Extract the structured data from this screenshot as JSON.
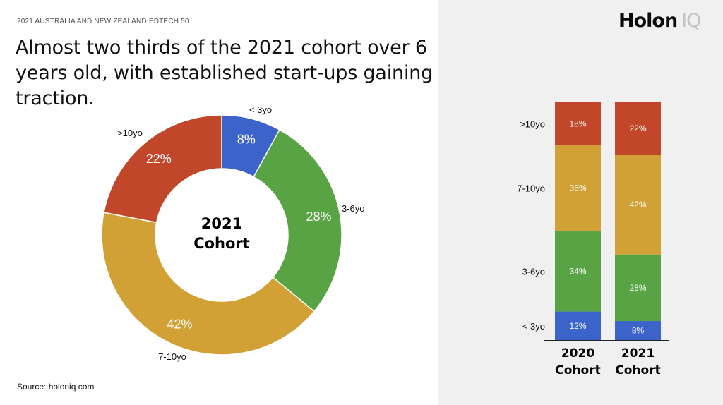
{
  "header": {
    "supertitle": "2021 AUSTRALIA AND NEW ZEALAND EDTECH 50",
    "headline": "Almost two thirds of the 2021 cohort over 6 years old, with established start-ups gaining traction.",
    "logo_word": "Holon",
    "logo_suffix": "IQ"
  },
  "footer": {
    "source": "Source: holoniq.com"
  },
  "colors": {
    "lt3": "#3b63c9",
    "3to6": "#58a444",
    "7to10": "#d2a136",
    "gt10": "#c2472a",
    "panel": "#f0f0f0"
  },
  "chart_data": [
    {
      "type": "pie",
      "variant": "donut",
      "center_label_line1": "2021",
      "center_label_line2": "Cohort",
      "slices": [
        {
          "label": "< 3yo",
          "value": 8,
          "value_label": "8%",
          "color": "#3b63c9"
        },
        {
          "label": "3-6yo",
          "value": 28,
          "value_label": "28%",
          "color": "#58a444"
        },
        {
          "label": "7-10yo",
          "value": 42,
          "value_label": "42%",
          "color": "#d2a136"
        },
        {
          "label": ">10yo",
          "value": 22,
          "value_label": "22%",
          "color": "#c2472a"
        }
      ]
    },
    {
      "type": "bar",
      "stacked": true,
      "normalized": true,
      "categories": [
        "2020 Cohort",
        "2021 Cohort"
      ],
      "category_lines": [
        [
          "2020",
          "Cohort"
        ],
        [
          "2021",
          "Cohort"
        ]
      ],
      "ylim": [
        0,
        100
      ],
      "series": [
        {
          "name": "< 3yo",
          "values": [
            12,
            8
          ],
          "value_labels": [
            "12%",
            "8%"
          ],
          "color": "#3b63c9"
        },
        {
          "name": "3-6yo",
          "values": [
            34,
            28
          ],
          "value_labels": [
            "34%",
            "28%"
          ],
          "color": "#58a444"
        },
        {
          "name": "7-10yo",
          "values": [
            36,
            42
          ],
          "value_labels": [
            "36%",
            "42%"
          ],
          "color": "#d2a136"
        },
        {
          "name": ">10yo",
          "values": [
            18,
            22
          ],
          "value_labels": [
            "18%",
            "22%"
          ],
          "color": "#c2472a"
        }
      ]
    }
  ]
}
